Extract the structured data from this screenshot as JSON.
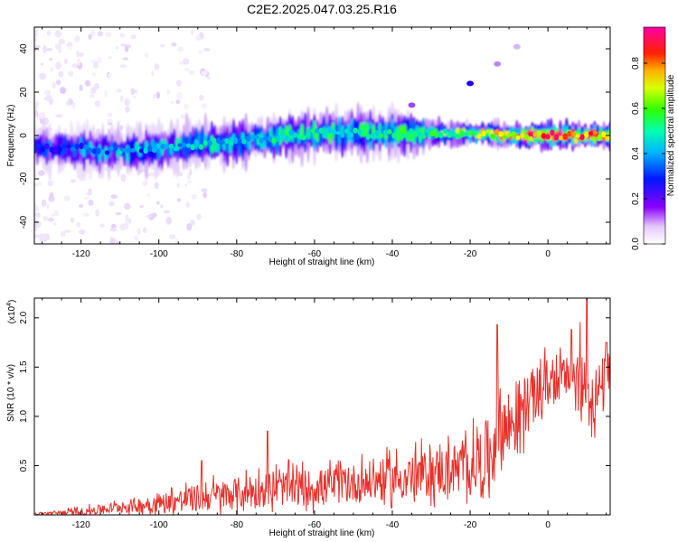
{
  "title": "C2E2.2025.047.03.25.R16",
  "chart_data": [
    {
      "type": "heatmap",
      "xlabel": "Height of straight line (km)",
      "ylabel": "Frequency (Hz)",
      "xlim": [
        -132,
        16
      ],
      "ylim": [
        -50,
        50
      ],
      "xticks": [
        -120,
        -100,
        -80,
        -60,
        -40,
        -20,
        0
      ],
      "yticks": [
        -40,
        -20,
        0,
        20,
        40
      ],
      "colorbar": {
        "label": "Normalized spectral amplitude",
        "range": [
          0,
          0.96
        ],
        "ticks": [
          0.0,
          0.2,
          0.4,
          0.6,
          0.8
        ],
        "tick_labels": [
          "0.0",
          "0.2",
          "0.4",
          "0.6",
          "0.8"
        ],
        "colormap": [
          "#ffffff",
          "#e0c8f8",
          "#7a00ff",
          "#0000ff",
          "#00c8ff",
          "#00ff80",
          "#40ff00",
          "#ffff00",
          "#ff8000",
          "#ff0000",
          "#ff00a0"
        ]
      },
      "ridge": {
        "x": [
          -132,
          -120,
          -110,
          -100,
          -90,
          -80,
          -70,
          -60,
          -50,
          -40,
          -30,
          -20,
          -10,
          0,
          10,
          16
        ],
        "frequency_center": [
          -6,
          -6,
          -7,
          -6,
          -4,
          -3,
          -1,
          1,
          1,
          1,
          1,
          1,
          0,
          0,
          0,
          0
        ],
        "peak_amplitude": [
          0.3,
          0.35,
          0.4,
          0.4,
          0.45,
          0.45,
          0.5,
          0.5,
          0.5,
          0.5,
          0.55,
          0.6,
          0.8,
          0.9,
          0.9,
          0.8
        ]
      },
      "secondary_features": [
        {
          "x": -20,
          "frequency": 24,
          "amplitude": 0.25
        },
        {
          "x": -13,
          "frequency": 33,
          "amplitude": 0.12
        },
        {
          "x": -8,
          "frequency": 41,
          "amplitude": 0.1
        },
        {
          "x": -35,
          "frequency": 14,
          "amplitude": 0.15
        }
      ]
    },
    {
      "type": "line",
      "xlabel": "Height of straight line (km)",
      "ylabel": "SNR (10 * v/v)",
      "scale_note": "(x10",
      "scale_exp": "4",
      "scale_close": ")",
      "xlim": [
        -132,
        16
      ],
      "ylim": [
        0,
        2.2
      ],
      "xticks": [
        -120,
        -100,
        -80,
        -60,
        -40,
        -20,
        0
      ],
      "yticks": [
        0.5,
        1.0,
        1.5,
        2.0
      ],
      "ytick_labels": [
        "0.5",
        "1.0",
        "1.5",
        "2.0"
      ],
      "color": "#e8302a",
      "envelope": {
        "x": [
          -132,
          -120,
          -110,
          -100,
          -90,
          -80,
          -70,
          -60,
          -50,
          -40,
          -30,
          -20,
          -15,
          -12,
          -10,
          -5,
          0,
          5,
          8,
          10,
          12,
          16
        ],
        "baseline": [
          0.01,
          0.03,
          0.08,
          0.12,
          0.17,
          0.22,
          0.27,
          0.28,
          0.32,
          0.36,
          0.42,
          0.5,
          0.6,
          0.9,
          0.9,
          1.15,
          1.35,
          1.4,
          1.35,
          1.25,
          1.2,
          1.4
        ],
        "spread": [
          0.01,
          0.04,
          0.06,
          0.1,
          0.14,
          0.16,
          0.18,
          0.18,
          0.2,
          0.22,
          0.24,
          0.28,
          0.4,
          0.45,
          0.4,
          0.3,
          0.25,
          0.2,
          0.4,
          0.35,
          0.3,
          0.3
        ]
      },
      "peaks": [
        {
          "x": -13,
          "y": 1.93
        },
        {
          "x": 6,
          "y": 1.88
        },
        {
          "x": 10,
          "y": 2.2
        },
        {
          "x": 15,
          "y": 1.75
        },
        {
          "x": -72,
          "y": 0.85
        },
        {
          "x": -89,
          "y": 0.55
        }
      ]
    }
  ]
}
